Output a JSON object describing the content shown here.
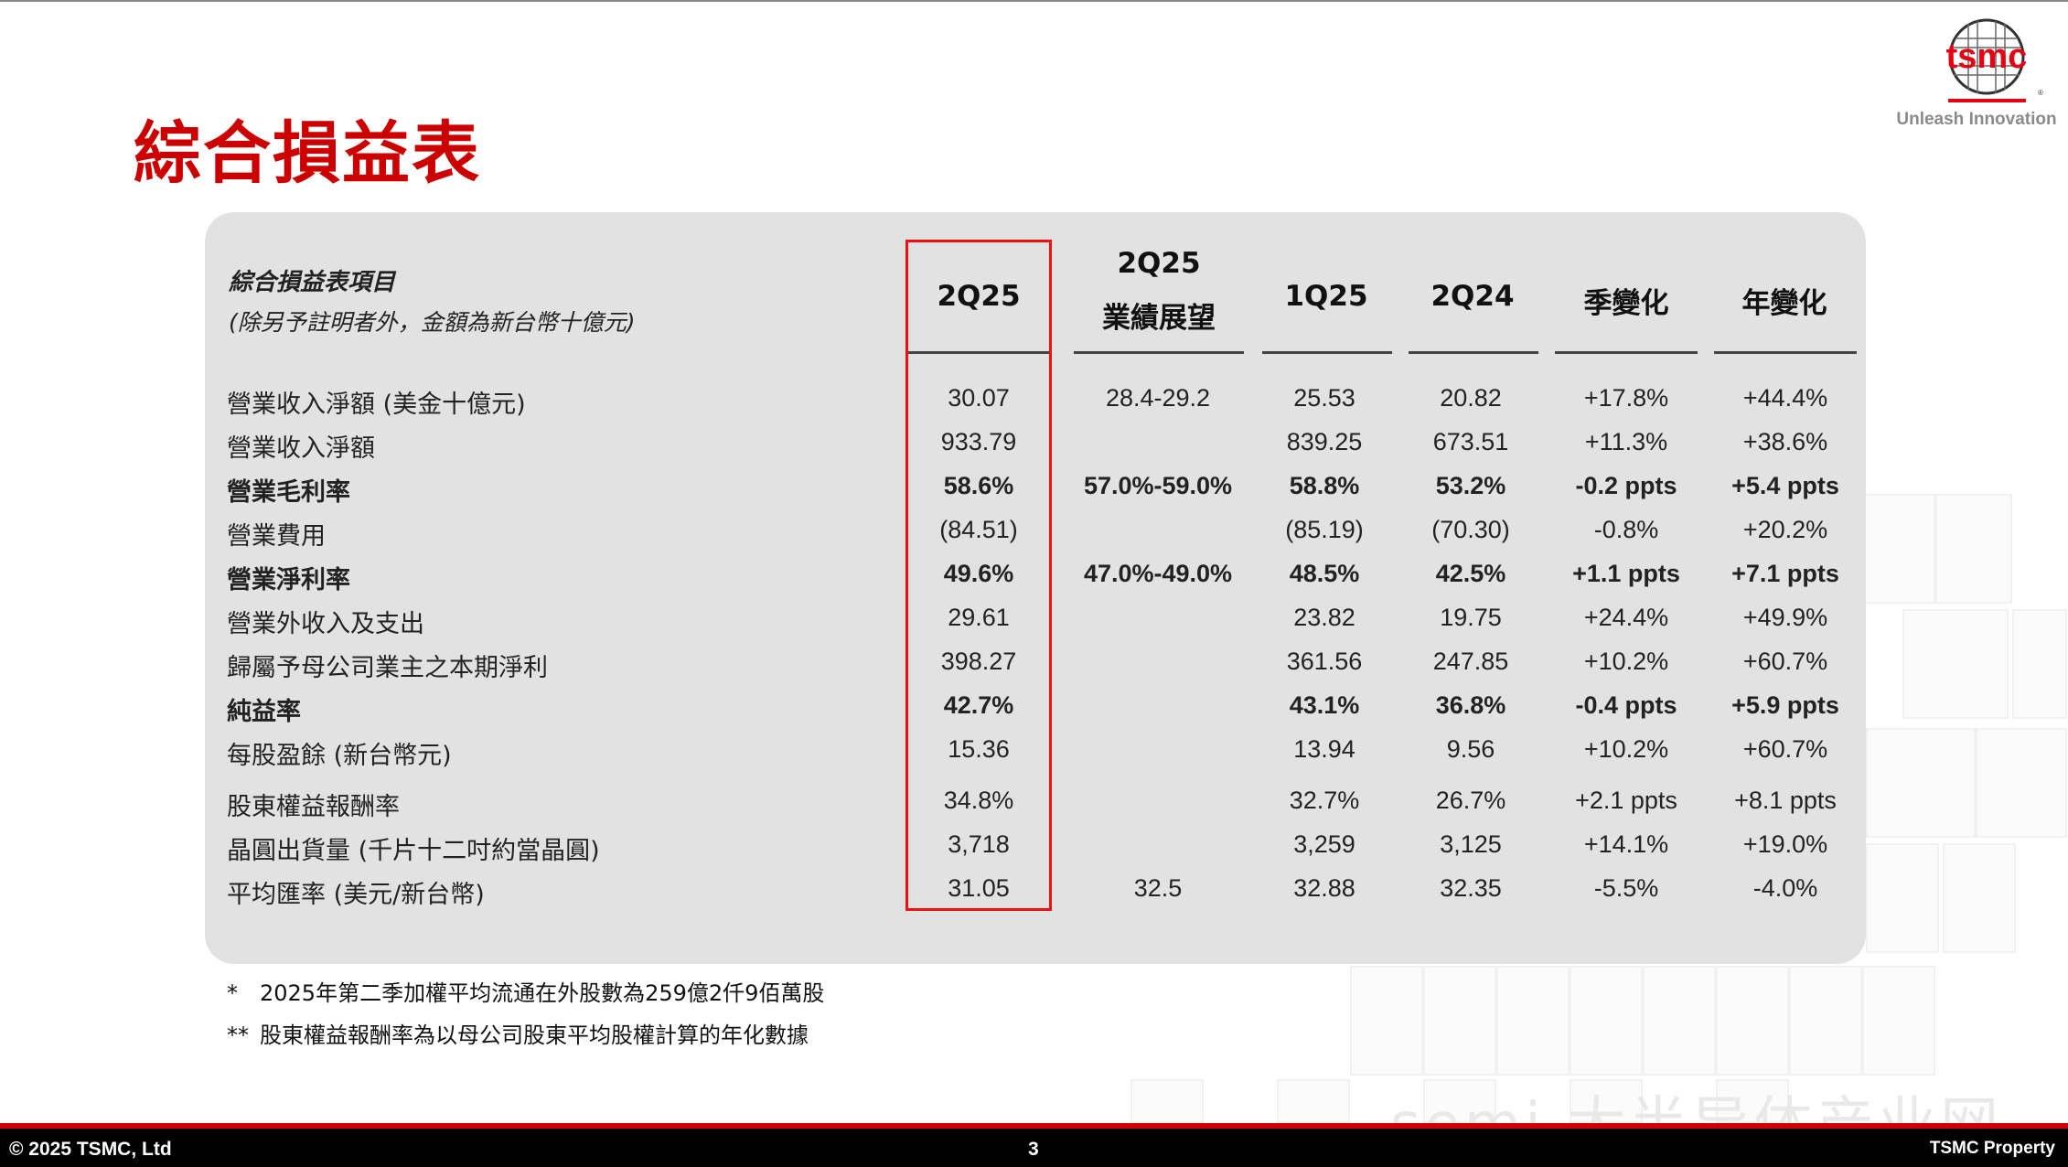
{
  "page": {
    "title": "綜合損益表",
    "logo_text": "tsmc",
    "tagline": "Unleash Innovation"
  },
  "table": {
    "header_label_line1": "綜合損益表項目",
    "header_label_line2": "(除另予註明者外，金額為新台幣十億元)",
    "columns": [
      {
        "line1": "2Q25",
        "line2": ""
      },
      {
        "line1": "2Q25",
        "line2": "業績展望"
      },
      {
        "line1": "1Q25",
        "line2": ""
      },
      {
        "line1": "2Q24",
        "line2": ""
      },
      {
        "line1": "季變化",
        "line2": ""
      },
      {
        "line1": "年變化",
        "line2": ""
      }
    ],
    "rows": [
      {
        "label": "營業收入淨額 (美金十億元)",
        "bold": false,
        "values": [
          "30.07",
          "28.4-29.2",
          "25.53",
          "20.82",
          "+17.8%",
          "+44.4%"
        ]
      },
      {
        "label": "營業收入淨額",
        "bold": false,
        "values": [
          "933.79",
          "",
          "839.25",
          "673.51",
          "+11.3%",
          "+38.6%"
        ]
      },
      {
        "label": "營業毛利率",
        "bold": true,
        "values": [
          "58.6%",
          "57.0%-59.0%",
          "58.8%",
          "53.2%",
          "-0.2 ppts",
          "+5.4 ppts"
        ]
      },
      {
        "label": "營業費用",
        "bold": false,
        "values": [
          "(84.51)",
          "",
          "(85.19)",
          "(70.30)",
          "-0.8%",
          "+20.2%"
        ]
      },
      {
        "label": "營業淨利率",
        "bold": true,
        "values": [
          "49.6%",
          "47.0%-49.0%",
          "48.5%",
          "42.5%",
          "+1.1 ppts",
          "+7.1 ppts"
        ]
      },
      {
        "label": "營業外收入及支出",
        "bold": false,
        "values": [
          "29.61",
          "",
          "23.82",
          "19.75",
          "+24.4%",
          "+49.9%"
        ]
      },
      {
        "label": "歸屬予母公司業主之本期淨利",
        "bold": false,
        "values": [
          "398.27",
          "",
          "361.56",
          "247.85",
          "+10.2%",
          "+60.7%"
        ]
      },
      {
        "label": "純益率",
        "bold": true,
        "values": [
          "42.7%",
          "",
          "43.1%",
          "36.8%",
          "-0.4 ppts",
          "+5.9 ppts"
        ]
      },
      {
        "label": "每股盈餘 (新台幣元)",
        "bold": false,
        "values": [
          "15.36",
          "",
          "13.94",
          "9.56",
          "+10.2%",
          "+60.7%"
        ]
      },
      {
        "label": "股東權益報酬率",
        "bold": false,
        "values": [
          "34.8%",
          "",
          "32.7%",
          "26.7%",
          "+2.1 ppts",
          "+8.1 ppts"
        ]
      },
      {
        "label": "晶圓出貨量 (千片十二吋約當晶圓)",
        "bold": false,
        "values": [
          "3,718",
          "",
          "3,259",
          "3,125",
          "+14.1%",
          "+19.0%"
        ]
      },
      {
        "label": "平均匯率 (美元/新台幣)",
        "bold": false,
        "values": [
          "31.05",
          "32.5",
          "32.88",
          "32.35",
          "-5.5%",
          "-4.0%"
        ]
      }
    ]
  },
  "notes": [
    {
      "mark": "*",
      "text": "2025年第二季加權平均流通在外股數為259億2仟9佰萬股"
    },
    {
      "mark": "**",
      "text": "股東權益報酬率為以母公司股東平均股權計算的年化數據"
    }
  ],
  "footer": {
    "copyright": "© 2025 TSMC, Ltd",
    "page_number": "3",
    "property": "TSMC Property"
  },
  "watermark": "semi 大半导体产业网",
  "colors": {
    "title_red": "#cc0000",
    "highlight_red": "#ee1111",
    "panel_gray": "#e2e2e2"
  }
}
